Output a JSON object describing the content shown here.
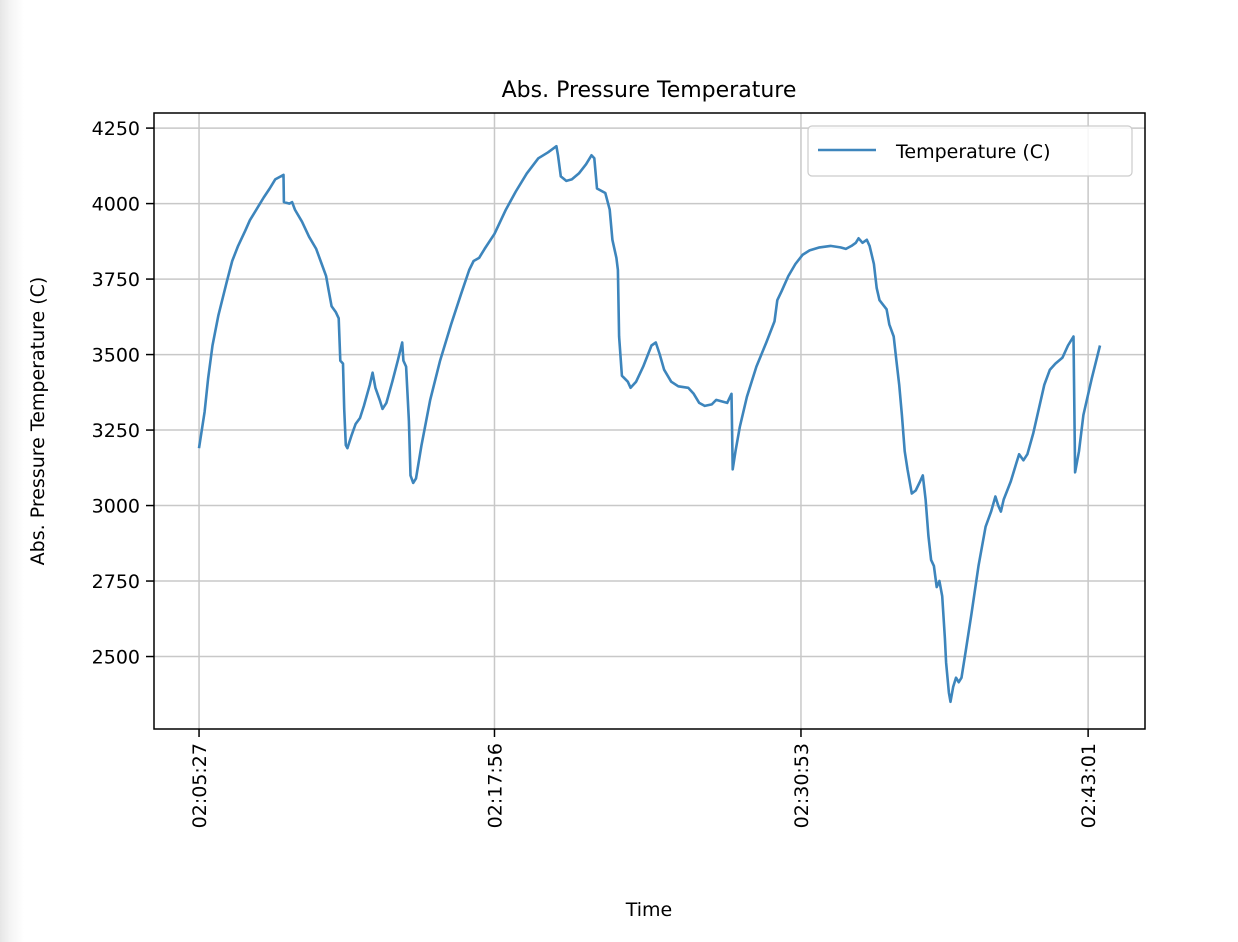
{
  "chart_data": {
    "type": "line",
    "title": "Abs. Pressure Temperature",
    "xlabel": "Time",
    "ylabel": "Abs. Pressure Temperature (C)",
    "x_ticks": [
      "02:05:27",
      "02:17:56",
      "02:30:53",
      "02:43:01"
    ],
    "y_ticks": [
      2500,
      2750,
      3000,
      3250,
      3500,
      3750,
      4000,
      4250
    ],
    "ylim": [
      2260,
      4300
    ],
    "grid": true,
    "legend_position": "top-right",
    "series": [
      {
        "name": "Temperature (C)",
        "color": "#3d85bc",
        "points": [
          [
            "02:05:27",
            3190
          ],
          [
            "02:05:34",
            3250
          ],
          [
            "02:05:41",
            3310
          ],
          [
            "02:05:50",
            3420
          ],
          [
            "02:06:01",
            3530
          ],
          [
            "02:06:16",
            3630
          ],
          [
            "02:06:37",
            3740
          ],
          [
            "02:06:51",
            3810
          ],
          [
            "02:07:06",
            3860
          ],
          [
            "02:07:24",
            3910
          ],
          [
            "02:07:36",
            3945
          ],
          [
            "02:07:57",
            3990
          ],
          [
            "02:08:11",
            4020
          ],
          [
            "02:08:26",
            4050
          ],
          [
            "02:08:40",
            4080
          ],
          [
            "02:09:01",
            4095
          ],
          [
            "02:09:02",
            4005
          ],
          [
            "02:09:16",
            4000
          ],
          [
            "02:09:23",
            4005
          ],
          [
            "02:09:30",
            3980
          ],
          [
            "02:09:48",
            3940
          ],
          [
            "02:10:06",
            3890
          ],
          [
            "02:10:24",
            3850
          ],
          [
            "02:10:38",
            3800
          ],
          [
            "02:10:49",
            3760
          ],
          [
            "02:10:56",
            3710
          ],
          [
            "02:11:03",
            3660
          ],
          [
            "02:11:14",
            3640
          ],
          [
            "02:11:21",
            3620
          ],
          [
            "02:11:25",
            3480
          ],
          [
            "02:11:32",
            3470
          ],
          [
            "02:11:35",
            3320
          ],
          [
            "02:11:39",
            3200
          ],
          [
            "02:11:43",
            3190
          ],
          [
            "02:11:53",
            3230
          ],
          [
            "02:12:04",
            3270
          ],
          [
            "02:12:15",
            3290
          ],
          [
            "02:12:25",
            3330
          ],
          [
            "02:12:40",
            3400
          ],
          [
            "02:12:47",
            3440
          ],
          [
            "02:12:54",
            3390
          ],
          [
            "02:13:05",
            3350
          ],
          [
            "02:13:12",
            3320
          ],
          [
            "02:13:22",
            3340
          ],
          [
            "02:13:37",
            3410
          ],
          [
            "02:13:51",
            3480
          ],
          [
            "02:14:02",
            3540
          ],
          [
            "02:14:05",
            3480
          ],
          [
            "02:14:12",
            3460
          ],
          [
            "02:14:19",
            3280
          ],
          [
            "02:14:23",
            3100
          ],
          [
            "02:14:30",
            3075
          ],
          [
            "02:14:37",
            3090
          ],
          [
            "02:14:51",
            3200
          ],
          [
            "02:15:13",
            3350
          ],
          [
            "02:15:38",
            3480
          ],
          [
            "02:16:06",
            3600
          ],
          [
            "02:16:31",
            3700
          ],
          [
            "02:16:52",
            3780
          ],
          [
            "02:17:03",
            3810
          ],
          [
            "02:17:17",
            3820
          ],
          [
            "02:17:31",
            3850
          ],
          [
            "02:17:56",
            3900
          ],
          [
            "02:18:25",
            3980
          ],
          [
            "02:18:50",
            4040
          ],
          [
            "02:19:18",
            4100
          ],
          [
            "02:19:47",
            4150
          ],
          [
            "02:20:12",
            4170
          ],
          [
            "02:20:33",
            4190
          ],
          [
            "02:20:37",
            4160
          ],
          [
            "02:20:44",
            4090
          ],
          [
            "02:20:58",
            4075
          ],
          [
            "02:21:12",
            4080
          ],
          [
            "02:21:30",
            4100
          ],
          [
            "02:21:48",
            4130
          ],
          [
            "02:22:02",
            4160
          ],
          [
            "02:22:09",
            4150
          ],
          [
            "02:22:16",
            4050
          ],
          [
            "02:22:37",
            4035
          ],
          [
            "02:22:48",
            3980
          ],
          [
            "02:22:55",
            3880
          ],
          [
            "02:23:05",
            3820
          ],
          [
            "02:23:09",
            3780
          ],
          [
            "02:23:12",
            3560
          ],
          [
            "02:23:19",
            3430
          ],
          [
            "02:23:34",
            3410
          ],
          [
            "02:23:41",
            3390
          ],
          [
            "02:23:55",
            3410
          ],
          [
            "02:24:13",
            3460
          ],
          [
            "02:24:34",
            3530
          ],
          [
            "02:24:45",
            3540
          ],
          [
            "02:24:55",
            3500
          ],
          [
            "02:25:06",
            3450
          ],
          [
            "02:25:24",
            3410
          ],
          [
            "02:25:42",
            3395
          ],
          [
            "02:26:07",
            3390
          ],
          [
            "02:26:21",
            3370
          ],
          [
            "02:26:35",
            3340
          ],
          [
            "02:26:49",
            3330
          ],
          [
            "02:27:07",
            3335
          ],
          [
            "02:27:18",
            3350
          ],
          [
            "02:27:32",
            3345
          ],
          [
            "02:27:46",
            3340
          ],
          [
            "02:27:57",
            3370
          ],
          [
            "02:28:00",
            3120
          ],
          [
            "02:28:07",
            3180
          ],
          [
            "02:28:18",
            3260
          ],
          [
            "02:28:36",
            3360
          ],
          [
            "02:29:00",
            3460
          ],
          [
            "02:29:25",
            3540
          ],
          [
            "02:29:46",
            3610
          ],
          [
            "02:29:53",
            3680
          ],
          [
            "02:30:04",
            3710
          ],
          [
            "02:30:21",
            3760
          ],
          [
            "02:30:39",
            3800
          ],
          [
            "02:30:57",
            3830
          ],
          [
            "02:31:15",
            3845
          ],
          [
            "02:31:40",
            3855
          ],
          [
            "02:32:08",
            3860
          ],
          [
            "02:32:33",
            3855
          ],
          [
            "02:32:47",
            3850
          ],
          [
            "02:33:01",
            3860
          ],
          [
            "02:33:12",
            3870
          ],
          [
            "02:33:19",
            3885
          ],
          [
            "02:33:29",
            3870
          ],
          [
            "02:33:40",
            3880
          ],
          [
            "02:33:47",
            3860
          ],
          [
            "02:33:58",
            3800
          ],
          [
            "02:34:05",
            3720
          ],
          [
            "02:34:12",
            3680
          ],
          [
            "02:34:30",
            3650
          ],
          [
            "02:34:37",
            3600
          ],
          [
            "02:34:48",
            3560
          ],
          [
            "02:34:55",
            3480
          ],
          [
            "02:35:02",
            3400
          ],
          [
            "02:35:09",
            3300
          ],
          [
            "02:35:16",
            3180
          ],
          [
            "02:35:23",
            3120
          ],
          [
            "02:35:34",
            3040
          ],
          [
            "02:35:44",
            3050
          ],
          [
            "02:35:55",
            3080
          ],
          [
            "02:36:02",
            3100
          ],
          [
            "02:36:09",
            3020
          ],
          [
            "02:36:16",
            2900
          ],
          [
            "02:36:23",
            2820
          ],
          [
            "02:36:30",
            2800
          ],
          [
            "02:36:37",
            2730
          ],
          [
            "02:36:44",
            2750
          ],
          [
            "02:36:51",
            2700
          ],
          [
            "02:36:58",
            2560
          ],
          [
            "02:37:01",
            2480
          ],
          [
            "02:37:08",
            2380
          ],
          [
            "02:37:12",
            2350
          ],
          [
            "02:37:19",
            2400
          ],
          [
            "02:37:26",
            2430
          ],
          [
            "02:37:33",
            2415
          ],
          [
            "02:37:40",
            2430
          ],
          [
            "02:37:51",
            2520
          ],
          [
            "02:38:05",
            2640
          ],
          [
            "02:38:23",
            2800
          ],
          [
            "02:38:41",
            2930
          ],
          [
            "02:38:55",
            2980
          ],
          [
            "02:39:06",
            3030
          ],
          [
            "02:39:13",
            3000
          ],
          [
            "02:39:20",
            2980
          ],
          [
            "02:39:27",
            3020
          ],
          [
            "02:39:45",
            3080
          ],
          [
            "02:39:59",
            3140
          ],
          [
            "02:40:06",
            3170
          ],
          [
            "02:40:17",
            3150
          ],
          [
            "02:40:27",
            3170
          ],
          [
            "02:40:42",
            3240
          ],
          [
            "02:40:56",
            3320
          ],
          [
            "02:41:10",
            3400
          ],
          [
            "02:41:24",
            3450
          ],
          [
            "02:41:38",
            3470
          ],
          [
            "02:41:56",
            3490
          ],
          [
            "02:42:10",
            3530
          ],
          [
            "02:42:24",
            3560
          ],
          [
            "02:42:28",
            3110
          ],
          [
            "02:42:38",
            3180
          ],
          [
            "02:42:49",
            3300
          ],
          [
            "02:43:10",
            3420
          ],
          [
            "02:43:31",
            3530
          ]
        ]
      }
    ]
  }
}
